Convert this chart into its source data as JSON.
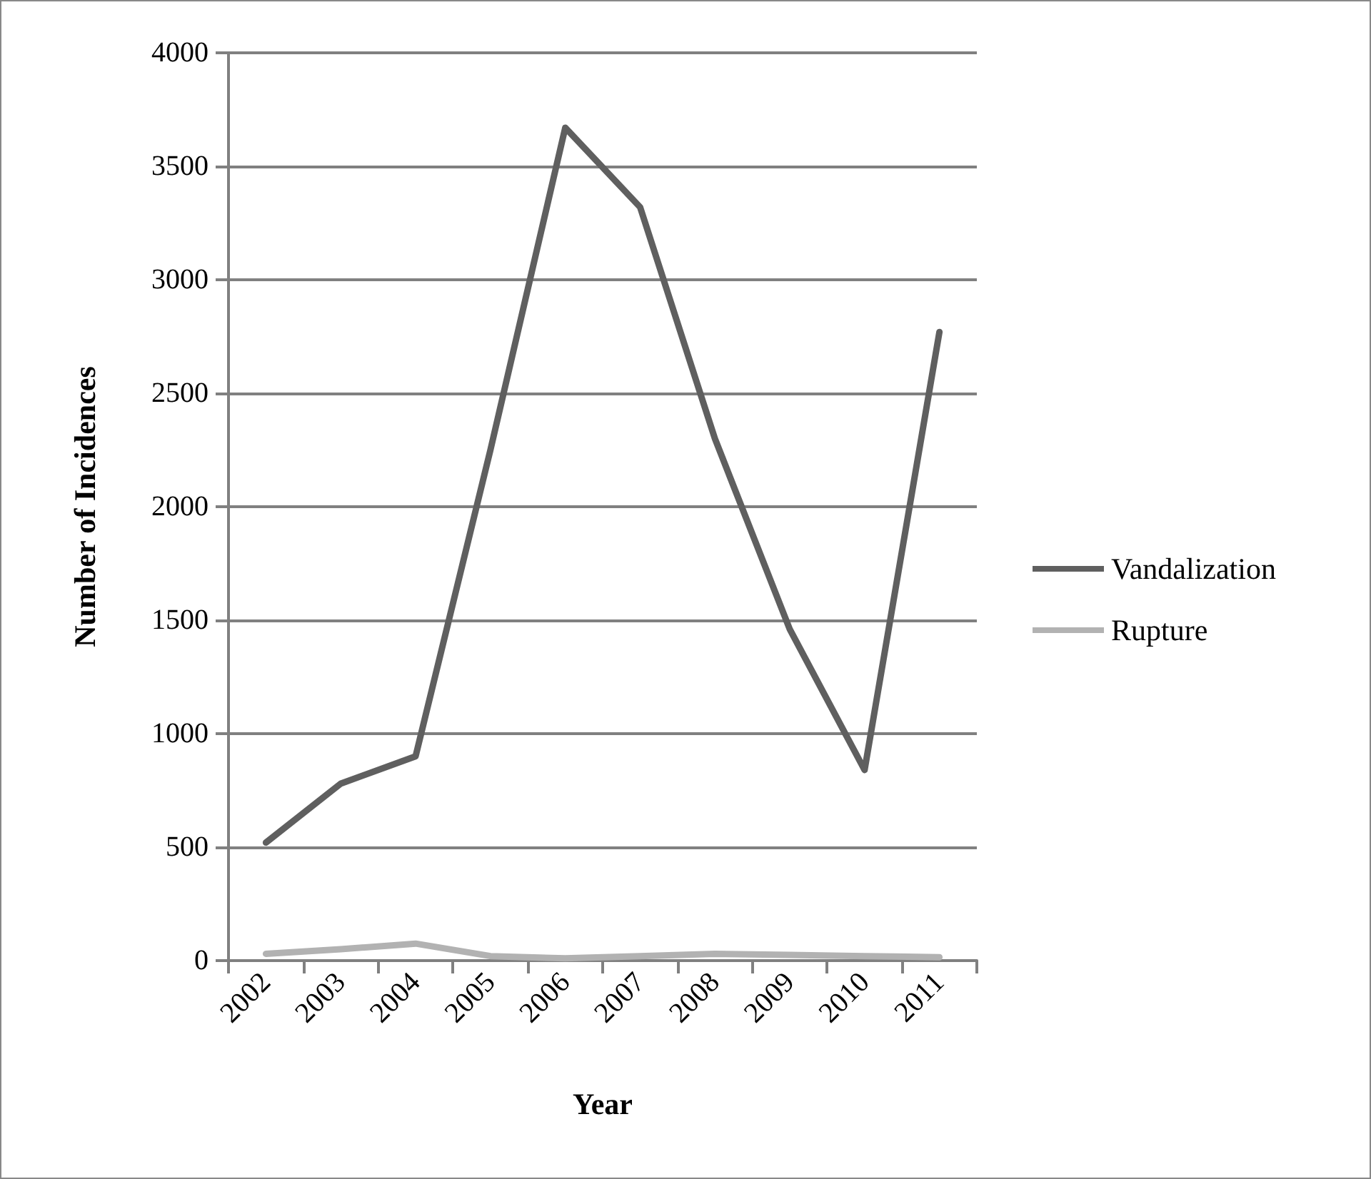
{
  "chart_data": {
    "type": "line",
    "xlabel": "Year",
    "ylabel": "Number of Incidences",
    "categories": [
      "2002",
      "2003",
      "2004",
      "2005",
      "2006",
      "2007",
      "2008",
      "2009",
      "2010",
      "2011"
    ],
    "series": [
      {
        "name": "Vandalization",
        "color": "#5f5f5f",
        "values": [
          520,
          780,
          900,
          2250,
          3670,
          3320,
          2300,
          1460,
          840,
          2770
        ]
      },
      {
        "name": "Rupture",
        "color": "#b2b2b2",
        "values": [
          30,
          50,
          75,
          20,
          10,
          20,
          30,
          25,
          20,
          15
        ]
      }
    ],
    "ylim": [
      0,
      4000
    ],
    "yticks": [
      0,
      500,
      1000,
      1500,
      2000,
      2500,
      3000,
      3500,
      4000
    ],
    "grid": "y",
    "legend": "right",
    "marker": "none",
    "line_style": "solid"
  }
}
